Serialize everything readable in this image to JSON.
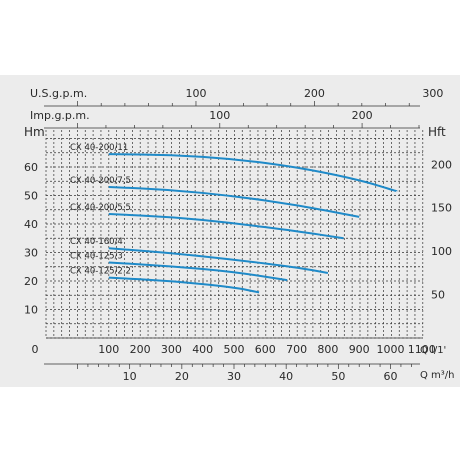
{
  "chart_data": {
    "type": "line",
    "colors": {
      "background": "#ececec",
      "grid": "#333333",
      "curve": "#1f8ac8",
      "text": "#2a2a2a"
    },
    "grid": true,
    "axes": {
      "usgpm": {
        "label": "U.S.g.p.m.",
        "ticks": [
          100,
          200,
          300
        ]
      },
      "impgpm": {
        "label": "Imp.g.p.m.",
        "ticks": [
          100,
          200
        ]
      },
      "q_lmin": {
        "label": "Q  l/1'",
        "range": [
          0,
          1150
        ],
        "ticks": [
          0,
          100,
          200,
          300,
          400,
          500,
          600,
          700,
          800,
          900,
          1000,
          1100
        ]
      },
      "q_m3h": {
        "label": "Q  m³/h",
        "ticks": [
          10,
          20,
          30,
          40,
          50,
          60
        ]
      },
      "hm": {
        "label": "Hm",
        "range": [
          0,
          68
        ],
        "ticks": [
          10,
          20,
          30,
          40,
          50,
          60
        ]
      },
      "hft": {
        "label": "Hft",
        "ticks": [
          50,
          100,
          150,
          200
        ]
      }
    },
    "series": [
      {
        "name": "CX 40-200/11",
        "x": [
          100,
          300,
          500,
          700,
          900,
          1020
        ],
        "y": [
          64.5,
          64.3,
          62.8,
          60,
          55.5,
          51.5
        ]
      },
      {
        "name": "CX 40-200/7,5",
        "x": [
          100,
          300,
          500,
          700,
          900
        ],
        "y": [
          53,
          52,
          49.8,
          46.7,
          42.5
        ]
      },
      {
        "name": "CX 40-200/5.5",
        "x": [
          100,
          300,
          500,
          700,
          850
        ],
        "y": [
          43.5,
          42.5,
          40.3,
          37.5,
          35
        ]
      },
      {
        "name": "CX 40-160/4",
        "x": [
          100,
          300,
          500,
          700,
          800
        ],
        "y": [
          31.5,
          29.8,
          27.5,
          24.8,
          22.8
        ]
      },
      {
        "name": "CX 40-125/3",
        "x": [
          100,
          300,
          500,
          670
        ],
        "y": [
          26.5,
          25.2,
          23.2,
          20.3
        ]
      },
      {
        "name": "CX 40-125/2.2",
        "x": [
          100,
          300,
          500,
          580
        ],
        "y": [
          21.2,
          20,
          17.8,
          16
        ]
      }
    ]
  }
}
